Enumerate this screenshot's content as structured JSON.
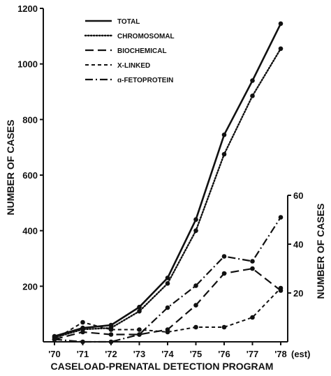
{
  "chart_data": {
    "type": "line",
    "xlabel": "CASELOAD-PRENATAL DETECTION PROGRAM",
    "ylabel_left": "NUMBER OF CASES",
    "ylabel_right": "NUMBER OF CASES",
    "categories": [
      "'70",
      "'71",
      "'72",
      "'73",
      "'74",
      "'75",
      "'76",
      "'77",
      "'78"
    ],
    "x_suffix": "(est)",
    "ylim_left": [
      0,
      1200
    ],
    "yticks_left": [
      200,
      400,
      600,
      800,
      1000,
      1200
    ],
    "ylim_right": [
      0,
      60
    ],
    "yticks_right": [
      20,
      40,
      60
    ],
    "grid": false,
    "legend_position": "top-left",
    "series": [
      {
        "name": "TOTAL",
        "axis": "left",
        "style": "solid",
        "values": [
          20,
          50,
          60,
          125,
          230,
          440,
          745,
          940,
          1145
        ]
      },
      {
        "name": "CHROMOSOMAL",
        "axis": "left",
        "style": "dotted",
        "values": [
          15,
          45,
          50,
          110,
          210,
          400,
          675,
          885,
          1055
        ]
      },
      {
        "name": "BIOCHEMICAL",
        "axis": "right",
        "style": "longdash",
        "values": [
          1,
          4,
          3,
          3,
          5,
          15,
          28,
          30,
          21
        ]
      },
      {
        "name": "X-LINKED",
        "axis": "right",
        "style": "dash",
        "values": [
          1,
          8,
          5,
          5,
          4,
          6,
          6,
          10,
          22
        ]
      },
      {
        "name": "ɑ-FETOPROTEIN",
        "axis": "right",
        "style": "dashdot",
        "values": [
          1,
          0,
          0,
          3,
          14,
          23,
          35,
          33,
          51
        ]
      }
    ]
  }
}
